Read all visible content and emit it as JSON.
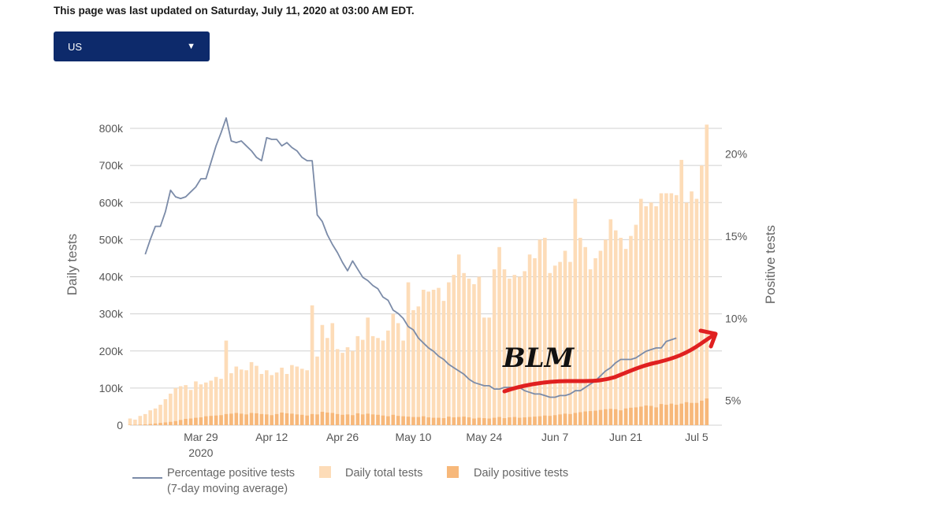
{
  "header": {
    "updated_text": "This page was last updated on Saturday, July 11, 2020 at 03:00 AM EDT."
  },
  "region_select": {
    "selected": "US",
    "icon": "caret-down-icon"
  },
  "colors": {
    "line": "#7b8ba8",
    "total_bars": "#fddcb8",
    "positive_bars": "#f7b87a",
    "grid": "#d0d0d0",
    "annotation": "#e02020",
    "handwriting": "#111111"
  },
  "chart_data": {
    "type": "bar",
    "ylabel": "Daily tests",
    "y2label": "Positive tests",
    "ylim": [
      0,
      800000
    ],
    "y_ticks": [
      "0",
      "100k",
      "200k",
      "300k",
      "400k",
      "500k",
      "600k",
      "700k",
      "800k"
    ],
    "y2lim": [
      3.5,
      22
    ],
    "y2_ticks": [
      "5%",
      "10%",
      "15%",
      "20%"
    ],
    "x_ticks": [
      "Mar 29",
      "Apr 12",
      "Apr 26",
      "May 10",
      "May 24",
      "Jun 7",
      "Jun 21",
      "Jul 5"
    ],
    "x_ticks_year": "2020",
    "x_range": [
      "2020-03-15",
      "2020-07-10"
    ],
    "grid": true,
    "series": [
      {
        "name": "Percentage positive tests",
        "name_line2": "(7-day moving average)",
        "type": "line",
        "unit": "%",
        "start_date": "2020-03-18",
        "values": [
          13.9,
          14.8,
          15.6,
          15.6,
          16.5,
          17.8,
          17.4,
          17.3,
          17.4,
          17.7,
          18.0,
          18.5,
          18.5,
          19.5,
          20.5,
          21.3,
          22.2,
          20.8,
          20.7,
          20.8,
          20.5,
          20.2,
          19.8,
          19.6,
          21.0,
          20.9,
          20.9,
          20.5,
          20.7,
          20.4,
          20.2,
          19.8,
          19.6,
          19.6,
          16.3,
          15.9,
          15.1,
          14.5,
          14.0,
          13.4,
          12.9,
          13.5,
          13.0,
          12.5,
          12.3,
          12.0,
          11.8,
          11.3,
          11.1,
          10.5,
          10.3,
          10.0,
          9.5,
          9.3,
          8.8,
          8.5,
          8.2,
          8.0,
          7.7,
          7.5,
          7.2,
          7.0,
          6.8,
          6.6,
          6.3,
          6.1,
          6.0,
          5.9,
          5.9,
          5.7,
          5.7,
          5.8,
          5.8,
          5.8,
          5.8,
          5.6,
          5.5,
          5.4,
          5.4,
          5.3,
          5.2,
          5.2,
          5.3,
          5.3,
          5.4,
          5.6,
          5.6,
          5.8,
          6.0,
          6.2,
          6.5,
          6.8,
          7.0,
          7.3,
          7.5,
          7.5,
          7.5,
          7.6,
          7.8,
          8.0,
          8.1,
          8.2,
          8.2,
          8.6,
          8.7,
          8.8
        ]
      },
      {
        "name": "Daily total tests",
        "type": "bar",
        "start_date": "2020-03-15",
        "values": [
          18000,
          15000,
          25000,
          30000,
          40000,
          45000,
          55000,
          70000,
          85000,
          100000,
          105000,
          108000,
          95000,
          118000,
          110000,
          115000,
          120000,
          130000,
          125000,
          228000,
          140000,
          158000,
          150000,
          148000,
          170000,
          160000,
          138000,
          148000,
          135000,
          142000,
          155000,
          138000,
          162000,
          158000,
          152000,
          148000,
          323000,
          185000,
          270000,
          235000,
          275000,
          205000,
          195000,
          210000,
          200000,
          240000,
          230000,
          290000,
          240000,
          235000,
          228000,
          255000,
          300000,
          275000,
          228000,
          385000,
          310000,
          320000,
          365000,
          360000,
          365000,
          370000,
          335000,
          385000,
          405000,
          460000,
          410000,
          395000,
          380000,
          400000,
          290000,
          290000,
          420000,
          480000,
          420000,
          395000,
          405000,
          400000,
          415000,
          460000,
          450000,
          500000,
          505000,
          410000,
          430000,
          440000,
          470000,
          440000,
          610000,
          505000,
          480000,
          420000,
          450000,
          470000,
          500000,
          555000,
          525000,
          505000,
          475000,
          510000,
          540000,
          610000,
          590000,
          600000,
          590000,
          625000,
          625000,
          625000,
          620000,
          715000,
          600000,
          630000,
          610000,
          700000,
          810000
        ]
      },
      {
        "name": "Daily positive tests",
        "type": "bar",
        "start_date": "2020-03-15",
        "values": [
          1000,
          1000,
          1500,
          2000,
          3000,
          4500,
          6000,
          7500,
          9000,
          11000,
          14000,
          17000,
          18000,
          20000,
          21000,
          24000,
          25000,
          26000,
          27000,
          30000,
          31000,
          33000,
          31000,
          29000,
          33000,
          32000,
          30000,
          29000,
          27000,
          30000,
          34000,
          32000,
          31000,
          29000,
          28000,
          26000,
          30000,
          29000,
          36000,
          34000,
          33000,
          30000,
          28000,
          29000,
          27000,
          32000,
          29000,
          31000,
          29000,
          28000,
          26000,
          24000,
          28000,
          25000,
          24000,
          23000,
          22000,
          22000,
          24000,
          21000,
          20000,
          20000,
          19000,
          23000,
          21000,
          22000,
          23000,
          21000,
          18000,
          20000,
          19000,
          18000,
          20000,
          22000,
          19000,
          21000,
          22000,
          20000,
          21000,
          22000,
          23000,
          24000,
          26000,
          25000,
          27000,
          29000,
          31000,
          30000,
          33000,
          35000,
          37000,
          38000,
          39000,
          41000,
          43000,
          44000,
          43000,
          40000,
          45000,
          47000,
          48000,
          50000,
          53000,
          52000,
          48000,
          57000,
          55000,
          58000,
          55000,
          58000,
          62000,
          60000,
          60000,
          66000,
          72000
        ]
      }
    ]
  },
  "annotation": {
    "handwritten_text": "BLM",
    "arrow_icon": "hand-drawn-arrow-icon"
  }
}
